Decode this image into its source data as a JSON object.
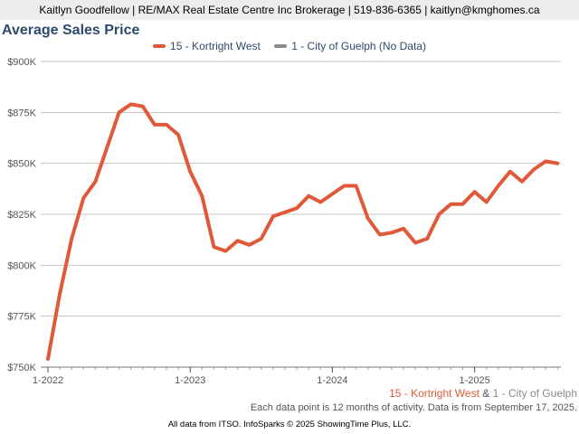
{
  "header": {
    "agent_line": "Kaitlyn Goodfellow | RE/MAX Real Estate Centre Inc Brokerage | 519-836-6365 | kaitlyn@kmghomes.ca"
  },
  "chart_title": "Average Sales Price",
  "legend": [
    {
      "label": "15 - Kortright West",
      "color": "#e05a3a"
    },
    {
      "label": "1 - City of Guelph (No Data)",
      "color": "#8a8a8a"
    }
  ],
  "footer": {
    "area1": "15 - Kortright West",
    "amp": "&",
    "area2": "1 - City of Guelph",
    "note": "Each data point is 12 months of activity. Data is from September 17, 2025.",
    "source": "All data from ITSO. InfoSparks © 2025 ShowingTime Plus, LLC."
  },
  "chart_data": {
    "type": "line",
    "title": "Average Sales Price",
    "xlabel": "",
    "ylabel": "",
    "x_start": "2022-01",
    "x_end": "2025-08",
    "x_tick_labels": [
      "1-2022",
      "1-2023",
      "1-2024",
      "1-2025"
    ],
    "y_tick_labels": [
      "$750K",
      "$775K",
      "$800K",
      "$825K",
      "$850K",
      "$875K",
      "$900K"
    ],
    "y_ticks": [
      750000,
      775000,
      800000,
      825000,
      850000,
      875000,
      900000
    ],
    "ylim": [
      750000,
      900000
    ],
    "grid": true,
    "legend_position": "top-center",
    "series": [
      {
        "name": "15 - Kortright West",
        "color": "#e05a3a",
        "x": [
          "2022-01",
          "2022-02",
          "2022-03",
          "2022-04",
          "2022-05",
          "2022-06",
          "2022-07",
          "2022-08",
          "2022-09",
          "2022-10",
          "2022-11",
          "2022-12",
          "2023-01",
          "2023-02",
          "2023-03",
          "2023-04",
          "2023-05",
          "2023-06",
          "2023-07",
          "2023-08",
          "2023-09",
          "2023-10",
          "2023-11",
          "2023-12",
          "2024-01",
          "2024-02",
          "2024-03",
          "2024-04",
          "2024-05",
          "2024-06",
          "2024-07",
          "2024-08",
          "2024-09",
          "2024-10",
          "2024-11",
          "2024-12",
          "2025-01",
          "2025-02",
          "2025-03",
          "2025-04",
          "2025-05",
          "2025-06",
          "2025-07",
          "2025-08"
        ],
        "values": [
          754000,
          786000,
          813000,
          833000,
          841000,
          858000,
          875000,
          879000,
          878000,
          869000,
          869000,
          864000,
          846000,
          834000,
          809000,
          807000,
          812000,
          810000,
          813000,
          824000,
          826000,
          828000,
          834000,
          831000,
          835000,
          839000,
          839000,
          823000,
          815000,
          816000,
          818000,
          811000,
          813000,
          825000,
          830000,
          830000,
          836000,
          831000,
          839000,
          846000,
          841000,
          847000,
          851000,
          850000
        ]
      },
      {
        "name": "1 - City of Guelph (No Data)",
        "color": "#8a8a8a",
        "x": [],
        "values": []
      }
    ]
  }
}
